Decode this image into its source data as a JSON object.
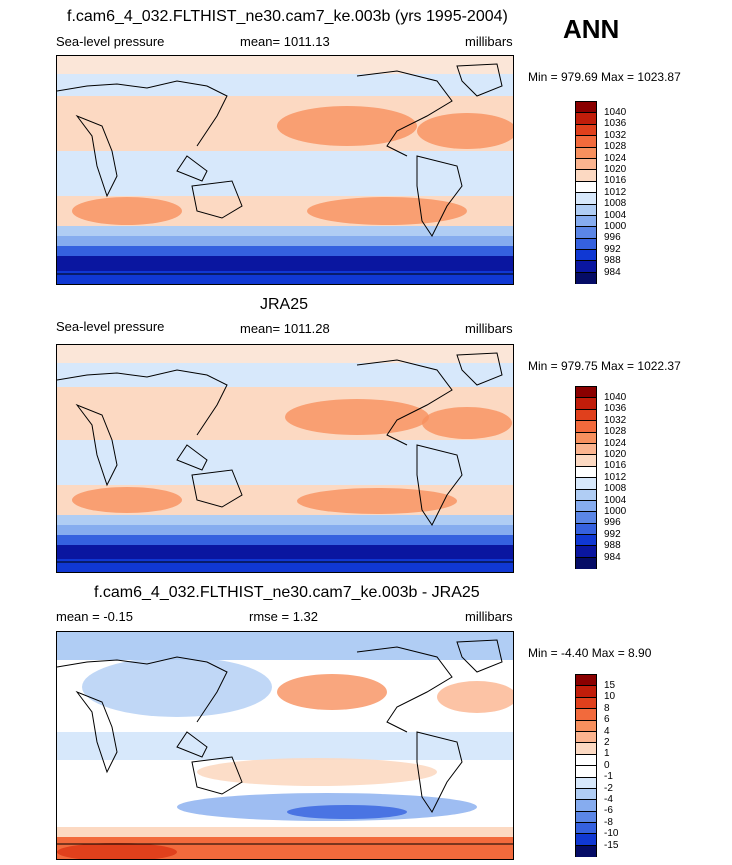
{
  "season": "ANN",
  "panels": [
    {
      "title": "f.cam6_4_032.FLTHIST_ne30.cam7_ke.003b (yrs 1995-2004)",
      "left_label": "Sea-level pressure",
      "center_label": "mean= 1011.13",
      "right_label": "millibars",
      "minmax": "Min = 979.69 Max = 1023.87",
      "colorbar_labels": [
        "1040",
        "1036",
        "1032",
        "1028",
        "1024",
        "1020",
        "1016",
        "1012",
        "1008",
        "1004",
        "1000",
        "996",
        "992",
        "988",
        "984"
      ]
    },
    {
      "title": "JRA25",
      "left_label": "Sea-level pressure",
      "center_label": "mean= 1011.28",
      "right_label": "millibars",
      "minmax": "Min = 979.75 Max = 1022.37",
      "colorbar_labels": [
        "1040",
        "1036",
        "1032",
        "1028",
        "1024",
        "1020",
        "1016",
        "1012",
        "1008",
        "1004",
        "1000",
        "996",
        "992",
        "988",
        "984"
      ]
    },
    {
      "title": "f.cam6_4_032.FLTHIST_ne30.cam7_ke.003b - JRA25",
      "left_label": "mean =  -0.15",
      "center_label": "rmse =   1.32",
      "right_label": "millibars",
      "minmax": "Min =  -4.40 Max =   8.90",
      "colorbar_labels": [
        "15",
        "10",
        "8",
        "6",
        "4",
        "2",
        "1",
        "0",
        "-1",
        "-2",
        "-4",
        "-6",
        "-8",
        "-10",
        "-15"
      ]
    }
  ],
  "colors": {
    "abs_scale": [
      "#8a0000",
      "#c11d0a",
      "#e0401c",
      "#f26a3c",
      "#f7905e",
      "#fbb48f",
      "#fcd9c2",
      "#ffffff",
      "#d7e8fb",
      "#b0cdf4",
      "#86acef",
      "#5b86e6",
      "#3561df",
      "#1038d3",
      "#0a16a0",
      "#050c66"
    ],
    "diff_scale": [
      "#8a0000",
      "#c11d0a",
      "#e0401c",
      "#f26a3c",
      "#f7905e",
      "#fbb48f",
      "#fcd9c2",
      "#ffffff",
      "#ffffff",
      "#d7e8fb",
      "#b0cdf4",
      "#86acef",
      "#5b86e6",
      "#3561df",
      "#1038d3",
      "#050c66"
    ]
  },
  "chart_data": [
    {
      "type": "heatmap",
      "title": "f.cam6_4_032.FLTHIST_ne30.cam7_ke.003b (yrs 1995-2004)",
      "variable": "Sea-level pressure",
      "units": "millibars",
      "mean": 1011.13,
      "min": 979.69,
      "max": 1023.87,
      "contour_levels": [
        984,
        988,
        992,
        996,
        1000,
        1004,
        1008,
        1012,
        1016,
        1020,
        1024,
        1028,
        1032,
        1036,
        1040
      ]
    },
    {
      "type": "heatmap",
      "title": "JRA25",
      "variable": "Sea-level pressure",
      "units": "millibars",
      "mean": 1011.28,
      "min": 979.75,
      "max": 1022.37,
      "contour_levels": [
        984,
        988,
        992,
        996,
        1000,
        1004,
        1008,
        1012,
        1016,
        1020,
        1024,
        1028,
        1032,
        1036,
        1040
      ]
    },
    {
      "type": "heatmap",
      "title": "f.cam6_4_032.FLTHIST_ne30.cam7_ke.003b - JRA25",
      "units": "millibars",
      "mean": -0.15,
      "rmse": 1.32,
      "min": -4.4,
      "max": 8.9,
      "contour_levels": [
        -15,
        -10,
        -8,
        -6,
        -4,
        -2,
        -1,
        0,
        1,
        2,
        4,
        6,
        8,
        10,
        15
      ]
    }
  ]
}
